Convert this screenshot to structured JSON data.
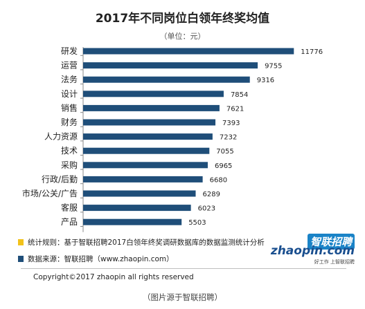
{
  "chart_data": {
    "type": "bar",
    "orientation": "horizontal",
    "title": "2017年不同岗位白领年终奖均值",
    "subtitle": "（单位：元）",
    "categories": [
      "研发",
      "运营",
      "法务",
      "设计",
      "销售",
      "财务",
      "人力资源",
      "技术",
      "采购",
      "行政/后勤",
      "市场/公关/广告",
      "客服",
      "产品"
    ],
    "values": [
      11776,
      9755,
      9316,
      7854,
      7621,
      7393,
      7232,
      7055,
      6965,
      6680,
      6289,
      6023,
      5503
    ],
    "xlim": [
      0,
      12500
    ],
    "grid": false,
    "bar_color": "#1f4e79"
  },
  "notes": [
    {
      "marker_color": "#f2c21b",
      "text": "统计规则：基于智联招聘2017白领年终奖调研数据库的数据监测统计分析"
    },
    {
      "marker_color": "#1f4e79",
      "text": "数据来源：智联招聘（www.zhaopin.com）"
    }
  ],
  "logo": {
    "cn": "智联招聘",
    "en": "zhaopin.com",
    "tagline": "好工作 上智联招聘"
  },
  "copyright": "Copyright©2017 zhaopin all rights reserved",
  "caption": "（图片源于智联招聘）"
}
